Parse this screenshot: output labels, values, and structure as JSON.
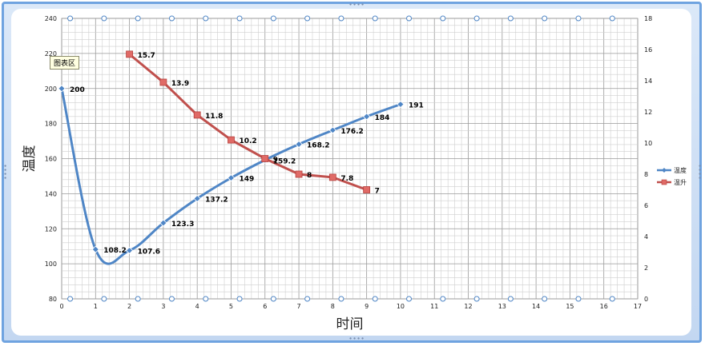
{
  "tooltip": "图表区",
  "chart_data": {
    "type": "line",
    "xlabel": "时间",
    "ylabel": "温度",
    "x_ticks": [
      "0",
      "1",
      "2",
      "3",
      "4",
      "5",
      "6",
      "7",
      "8",
      "9",
      "10",
      "11",
      "12",
      "13",
      "14",
      "15",
      "16",
      "17"
    ],
    "y_ticks_left": [
      "80",
      "100",
      "120",
      "140",
      "160",
      "180",
      "200",
      "220",
      "240"
    ],
    "y_ticks_right": [
      "0",
      "2",
      "4",
      "6",
      "8",
      "10",
      "12",
      "14",
      "16",
      "18"
    ],
    "xlim": [
      0,
      17
    ],
    "ylim_left": [
      80,
      240
    ],
    "ylim_right": [
      0,
      18
    ],
    "grid": true,
    "legend_position": "right",
    "series": [
      {
        "name": "温度",
        "axis": "left",
        "color": "#4f86c6",
        "marker": "diamond",
        "smooth": true,
        "x": [
          0,
          1,
          2,
          3,
          4,
          5,
          6,
          7,
          8,
          9,
          10
        ],
        "values": [
          200,
          108.2,
          107.6,
          123.3,
          137.2,
          149,
          159.2,
          168.2,
          176.2,
          184,
          191
        ],
        "labels": [
          "200",
          "108.2",
          "107.6",
          "123.3",
          "137.2",
          "149",
          "159.2",
          "168.2",
          "176.2",
          "184",
          "191"
        ]
      },
      {
        "name": "温升",
        "axis": "right",
        "color": "#c0504d",
        "marker": "square",
        "smooth": false,
        "x": [
          2,
          3,
          4,
          5,
          6,
          7,
          8,
          9
        ],
        "values": [
          15.7,
          13.9,
          11.8,
          10.2,
          9,
          8,
          7.8,
          7
        ],
        "labels": [
          "15.7",
          "13.9",
          "11.8",
          "10.2",
          "9",
          "8",
          "7.8",
          "7"
        ]
      }
    ]
  }
}
